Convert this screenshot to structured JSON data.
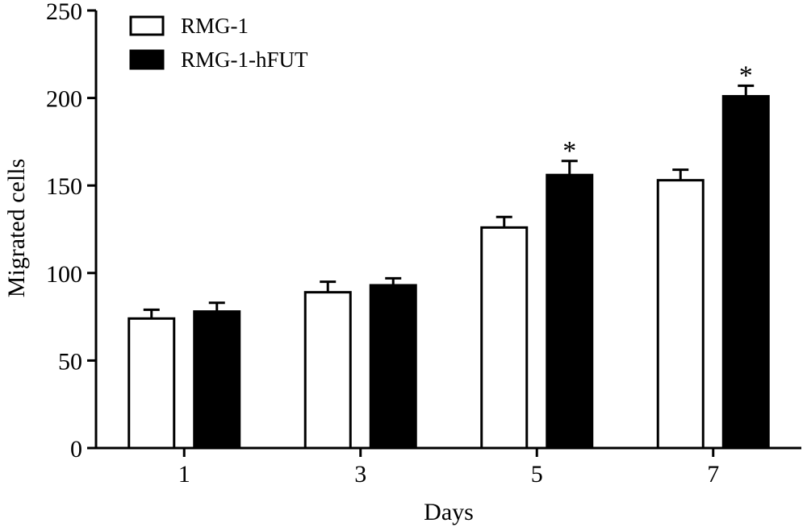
{
  "chart_data": {
    "type": "bar",
    "xlabel": "Days",
    "ylabel": "Migrated cells",
    "ylim": [
      0,
      250
    ],
    "yticks": [
      0,
      50,
      100,
      150,
      200,
      250
    ],
    "categories": [
      "1",
      "3",
      "5",
      "7"
    ],
    "series": [
      {
        "name": "RMG-1",
        "fill": "#ffffff",
        "values": [
          74,
          89,
          126,
          153
        ],
        "errors": [
          5,
          6,
          6,
          6
        ],
        "annotations": [
          "",
          "",
          "",
          ""
        ]
      },
      {
        "name": "RMG-1-hFUT",
        "fill": "#000000",
        "values": [
          78,
          93,
          156,
          201
        ],
        "errors": [
          5,
          4,
          8,
          6
        ],
        "annotations": [
          "",
          "",
          "*",
          "*"
        ]
      }
    ],
    "legend": "top-left",
    "grid": false
  }
}
